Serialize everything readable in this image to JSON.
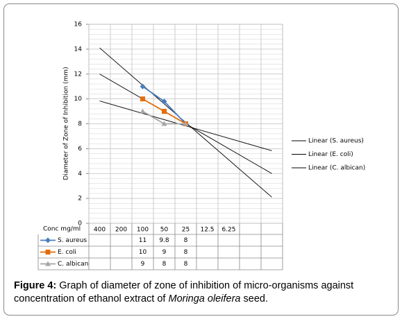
{
  "chart_data": {
    "type": "line",
    "y_axis_label": "Diameter of Zone of Inhibition (mm)",
    "table_header": "Conc mg/ml",
    "categories": [
      "400",
      "200",
      "100",
      "50",
      "25",
      "12.5",
      "6.25",
      null,
      null
    ],
    "series": [
      {
        "name": "S. aureus",
        "color": "#4a7ebb",
        "marker": "diamond",
        "values": [
          null,
          null,
          11,
          9.8,
          8,
          null,
          null,
          null,
          null
        ]
      },
      {
        "name": "E. coli",
        "color": "#e46c0a",
        "marker": "square",
        "values": [
          null,
          null,
          10,
          9,
          8,
          null,
          null,
          null,
          null
        ]
      },
      {
        "name": "C. albican",
        "color": "#a5a5a5",
        "marker": "triangle",
        "values": [
          null,
          null,
          9,
          8,
          8,
          null,
          null,
          null,
          null
        ]
      }
    ],
    "trendlines": [
      {
        "name": "Linear (S. aureus)",
        "color": "#000000",
        "label_color": "#1f5fa8"
      },
      {
        "name": "Linear (E. coli)",
        "color": "#000000",
        "label_color": "#c00000"
      },
      {
        "name": "Linear (C. albican)",
        "color": "#000000",
        "label_color": "#000000"
      }
    ],
    "ylim": [
      0,
      16
    ],
    "yticks": [
      0,
      2,
      4,
      6,
      8,
      10,
      12,
      14,
      16
    ],
    "grid": true
  },
  "caption": {
    "label": "Figure 4:",
    "text": "Graph of diameter of zone of inhibition of micro-organisms against concentration of ethanol extract of",
    "italic": "Moringa oleifera",
    "end": "seed."
  }
}
